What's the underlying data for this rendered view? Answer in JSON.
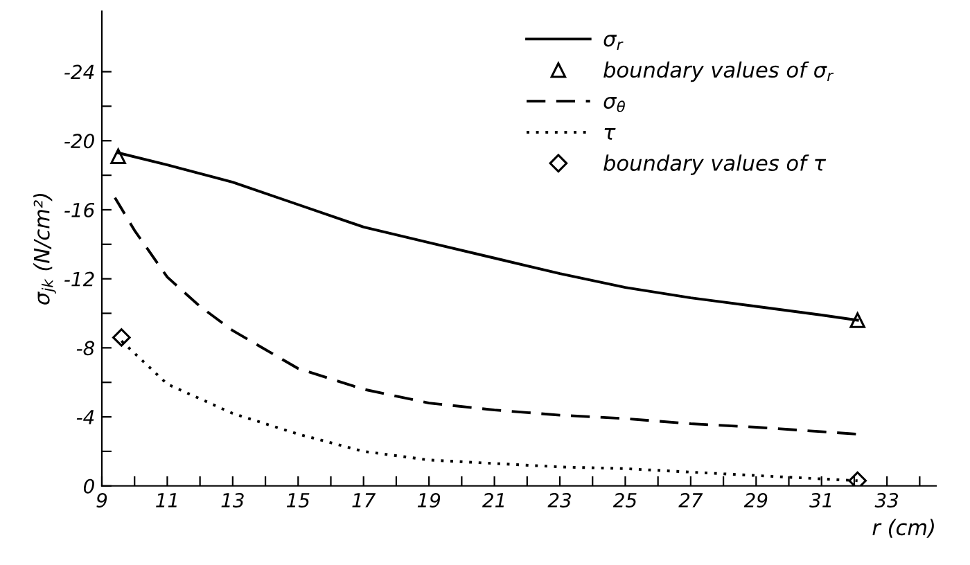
{
  "chart_data": {
    "type": "line",
    "xlabel": "r (cm)",
    "ylabel": "σ$_{jk}$ (N/cm²)",
    "xlim": [
      9,
      34.5
    ],
    "ylim": [
      0,
      -27.5
    ],
    "xticks": [
      9,
      {
        "value": 10,
        "label": null
      },
      11,
      {
        "value": 12,
        "label": null
      },
      13,
      {
        "value": 14,
        "label": null
      },
      15,
      {
        "value": 16,
        "label": null
      },
      17,
      {
        "value": 18,
        "label": null
      },
      19,
      {
        "value": 20,
        "label": null
      },
      21,
      {
        "value": 22,
        "label": null
      },
      23,
      {
        "value": 24,
        "label": null
      },
      25,
      {
        "value": 26,
        "label": null
      },
      27,
      {
        "value": 28,
        "label": null
      },
      29,
      {
        "value": 30,
        "label": null
      },
      31,
      {
        "value": 32,
        "label": null
      },
      33,
      {
        "value": 34,
        "label": null
      }
    ],
    "yticks": [
      0,
      {
        "value": -2,
        "label": null
      },
      -4,
      {
        "value": -6,
        "label": null
      },
      -8,
      {
        "value": -10,
        "label": null
      },
      -12,
      {
        "value": -14,
        "label": null
      },
      -16,
      {
        "value": -18,
        "label": null
      },
      -20,
      {
        "value": -22,
        "label": null
      },
      -24
    ],
    "grid": false,
    "legend": "top right",
    "series": [
      {
        "name": "σ$_{r}$",
        "line_style": "solid",
        "color": "#000000",
        "x": [
          9.5,
          11,
          13,
          15,
          17,
          19,
          21,
          23,
          25,
          27,
          29,
          31,
          32.1
        ],
        "values": [
          -19.3,
          -18.6,
          -17.6,
          -16.3,
          -15.0,
          -14.1,
          -13.2,
          -12.3,
          -11.5,
          -10.9,
          -10.4,
          -9.9,
          -9.6
        ]
      },
      {
        "name": "boundary values of σ$_{r}$",
        "type": "scatter",
        "marker": "triangle",
        "color": "#000000",
        "x": [
          9.5,
          32.1
        ],
        "values": [
          -19.1,
          -9.6
        ]
      },
      {
        "name": "σ$_{θ}$",
        "line_style": "dashed",
        "color": "#000000",
        "x": [
          9.4,
          10,
          11,
          12,
          13,
          15,
          17,
          19,
          21,
          23,
          25,
          27,
          29,
          32.1
        ],
        "values": [
          -16.7,
          -14.8,
          -12.1,
          -10.4,
          -9.0,
          -6.8,
          -5.6,
          -4.8,
          -4.4,
          -4.1,
          -3.9,
          -3.6,
          -3.4,
          -3.0
        ]
      },
      {
        "name": "τ",
        "line_style": "dotted",
        "color": "#000000",
        "x": [
          9.6,
          11,
          13,
          15,
          17,
          19,
          21,
          23,
          25,
          27,
          29,
          32.1
        ],
        "values": [
          -8.4,
          -5.9,
          -4.2,
          -3.0,
          -2.0,
          -1.5,
          -1.3,
          -1.1,
          -1.0,
          -0.8,
          -0.6,
          -0.3
        ]
      },
      {
        "name": "boundary values of τ",
        "type": "scatter",
        "marker": "diamond",
        "color": "#000000",
        "x": [
          9.6,
          32.1
        ],
        "values": [
          -8.6,
          -0.3
        ]
      }
    ]
  }
}
